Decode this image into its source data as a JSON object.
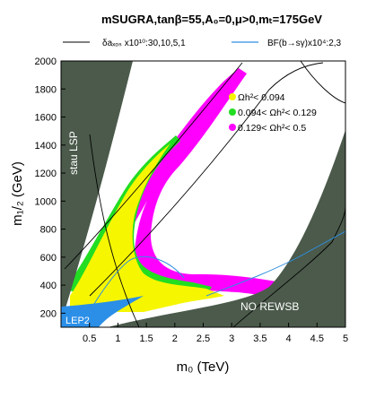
{
  "chart_data": {
    "type": "area",
    "title": "mSUGRA,tanβ=55,A₀=0,μ>0,mₜ=175GeV",
    "legend_top": {
      "delta_label": "δaₓₒₛ x10¹⁰:30,10,5,1",
      "bf_label": "BF(b→sγ)x10⁴:2,3"
    },
    "xlabel": "m₀ (TeV)",
    "ylabel": "m₁/₂ (GeV)",
    "x_ticks": [
      0.5,
      1,
      1.5,
      2,
      2.5,
      3,
      3.5,
      4,
      4.5,
      5
    ],
    "y_ticks": [
      200,
      400,
      600,
      800,
      1000,
      1200,
      1400,
      1600,
      1800,
      2000
    ],
    "xlim": [
      0,
      5
    ],
    "ylim": [
      100,
      2000
    ],
    "legend": [
      {
        "label": "Ωh²< 0.094",
        "color": "#f6f600"
      },
      {
        "label": "0.094< Ωh²< 0.129",
        "color": "#22dd22"
      },
      {
        "label": "0.129< Ωh²< 0.5",
        "color": "#ff00ff"
      }
    ],
    "region_labels": {
      "stau_lsp": "stau LSP",
      "no_rewsb": "NO REWSB",
      "lep2": "LEP2"
    },
    "colors": {
      "excluded": "#4b5a4b",
      "lep2": "#2b8fe8",
      "yellow": "#f6f600",
      "green": "#22dd22",
      "magenta": "#ff00ff",
      "bf_line": "#2e8fe0"
    }
  }
}
